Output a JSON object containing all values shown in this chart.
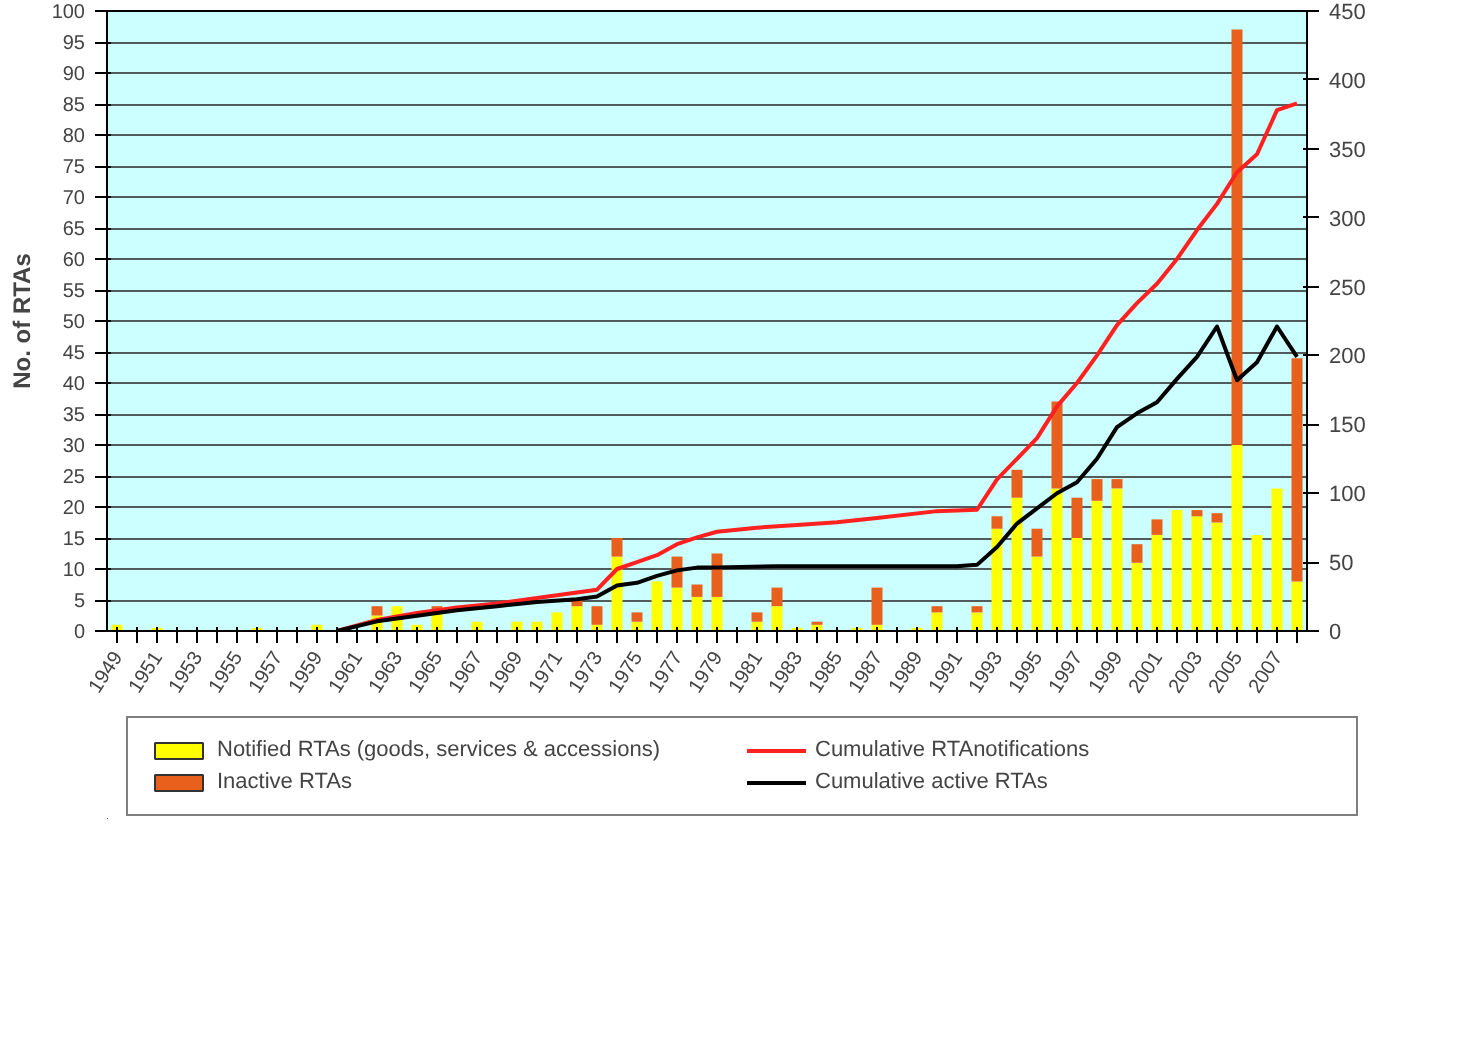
{
  "chart_data": {
    "type": "bar",
    "stacked": true,
    "ylabel": "No. of RTAs",
    "grid": "y",
    "legend": "bottom",
    "x": [
      1949,
      1950,
      1951,
      1952,
      1953,
      1954,
      1955,
      1956,
      1957,
      1958,
      1959,
      1960,
      1961,
      1962,
      1963,
      1964,
      1965,
      1966,
      1967,
      1968,
      1969,
      1970,
      1971,
      1972,
      1973,
      1974,
      1975,
      1976,
      1977,
      1978,
      1979,
      1980,
      1981,
      1982,
      1983,
      1984,
      1985,
      1986,
      1987,
      1988,
      1989,
      1990,
      1991,
      1992,
      1993,
      1994,
      1995,
      1996,
      1997,
      1998,
      1999,
      2000,
      2001,
      2002,
      2003,
      2004,
      2005,
      2006,
      2007,
      2008
    ],
    "xlim": [
      1948.5,
      2008.5
    ],
    "xticks": [
      1949,
      {
        "value": 1950,
        "label": null
      },
      1951,
      {
        "value": 1952,
        "label": null
      },
      1953,
      {
        "value": 1954,
        "label": null
      },
      1955,
      {
        "value": 1956,
        "label": null
      },
      1957,
      {
        "value": 1958,
        "label": null
      },
      1959,
      {
        "value": 1960,
        "label": null
      },
      1961,
      {
        "value": 1962,
        "label": null
      },
      1963,
      {
        "value": 1964,
        "label": null
      },
      1965,
      {
        "value": 1966,
        "label": null
      },
      1967,
      {
        "value": 1968,
        "label": null
      },
      1969,
      {
        "value": 1970,
        "label": null
      },
      1971,
      {
        "value": 1972,
        "label": null
      },
      1973,
      {
        "value": 1974,
        "label": null
      },
      1975,
      {
        "value": 1976,
        "label": null
      },
      1977,
      {
        "value": 1978,
        "label": null
      },
      1979,
      {
        "value": 1980,
        "label": null
      },
      1981,
      {
        "value": 1982,
        "label": null
      },
      1983,
      {
        "value": 1984,
        "label": null
      },
      1985,
      {
        "value": 1986,
        "label": null
      },
      1987,
      {
        "value": 1988,
        "label": null
      },
      1989,
      {
        "value": 1990,
        "label": null
      },
      1991,
      {
        "value": 1992,
        "label": null
      },
      1993,
      {
        "value": 1994,
        "label": null
      },
      1995,
      {
        "value": 1996,
        "label": null
      },
      1997,
      {
        "value": 1998,
        "label": null
      },
      1999,
      {
        "value": 2000,
        "label": null
      },
      2001,
      {
        "value": 2002,
        "label": null
      },
      2003,
      {
        "value": 2004,
        "label": null
      },
      2005,
      {
        "value": 2006,
        "label": null
      },
      2007,
      {
        "value": 2008,
        "label": null
      }
    ],
    "ylim": [
      0,
      100
    ],
    "yticks": [
      0,
      5,
      10,
      15,
      20,
      25,
      30,
      35,
      40,
      45,
      50,
      55,
      60,
      65,
      70,
      75,
      80,
      85,
      90,
      95,
      100
    ],
    "y2lim": [
      0,
      450
    ],
    "y2ticks": [
      0,
      50,
      100,
      150,
      200,
      250,
      300,
      350,
      400,
      450
    ],
    "series": [
      {
        "name": "Notified RTAs (goods, services & accessions)",
        "color": "#ffff00",
        "values": [
          1,
          0,
          0.5,
          0,
          0,
          0,
          0,
          0.5,
          0,
          0,
          1,
          0,
          0,
          2.5,
          4,
          1,
          3.5,
          0,
          1.5,
          0,
          1.5,
          1.5,
          3,
          4,
          1,
          12,
          1.5,
          8,
          7,
          5.5,
          5.5,
          0,
          1.5,
          4,
          0.5,
          1,
          0,
          0.5,
          1,
          0,
          0.5,
          3,
          0,
          3,
          16.5,
          21.5,
          12,
          23,
          15,
          21,
          23,
          11,
          15.5,
          19.5,
          18.5,
          17.5,
          30,
          15.5,
          23,
          8
        ]
      },
      {
        "name": "Inactive RTAs",
        "color": "#e8601c",
        "values": [
          0,
          0,
          0,
          0,
          0,
          0,
          0,
          0,
          0,
          0,
          0,
          0,
          0,
          1.5,
          0,
          0,
          0.5,
          0,
          0,
          0,
          0,
          0,
          0,
          1,
          3,
          3,
          1.5,
          0,
          5,
          2,
          7,
          0,
          1.5,
          3,
          0,
          0.5,
          0,
          0,
          6,
          0,
          0,
          1,
          0,
          1,
          2,
          4.5,
          4.5,
          14,
          6.5,
          3.5,
          1.5,
          3,
          2.5,
          0,
          1,
          1.5,
          67,
          0,
          0,
          36
        ]
      },
      {
        "name": "Cumulative RTAnotifications",
        "type": "line",
        "axis": "y2",
        "color": "#ff2020",
        "x": [
          1960,
          1962,
          1964,
          1966,
          1968,
          1970,
          1972,
          1973,
          1974,
          1975,
          1976,
          1977,
          1978,
          1979,
          1981,
          1983,
          1985,
          1987,
          1990,
          1992,
          1993,
          1994,
          1995,
          1996,
          1997,
          1998,
          1999,
          2000,
          2001,
          2002,
          2003,
          2004,
          2005,
          2006,
          2007,
          2008
        ],
        "values": [
          0,
          8,
          13,
          17,
          20,
          24,
          28,
          30,
          45,
          50,
          55,
          63,
          68,
          72,
          75,
          77,
          79,
          82,
          87,
          88,
          110,
          125,
          140,
          163,
          180,
          200,
          222,
          238,
          252,
          270,
          291,
          310,
          333,
          346,
          378,
          383
        ]
      },
      {
        "name": "Cumulative active RTAs",
        "type": "line",
        "axis": "y2",
        "color": "#000000",
        "x": [
          1960,
          1962,
          1964,
          1966,
          1968,
          1970,
          1972,
          1973,
          1974,
          1975,
          1976,
          1977,
          1978,
          1979,
          1982,
          1991,
          1992,
          1993,
          1994,
          1995,
          1996,
          1997,
          1998,
          1999,
          2000,
          2001,
          2002,
          2003,
          2004,
          2005,
          2006,
          2007,
          2008
        ],
        "values": [
          0,
          7,
          11,
          15,
          18,
          21,
          23,
          25,
          33,
          35,
          40,
          44,
          46,
          46,
          47,
          47,
          48,
          61,
          78,
          89,
          100,
          108,
          125,
          148,
          158,
          166,
          183,
          199,
          221,
          182,
          195,
          221,
          199
        ]
      }
    ]
  }
}
